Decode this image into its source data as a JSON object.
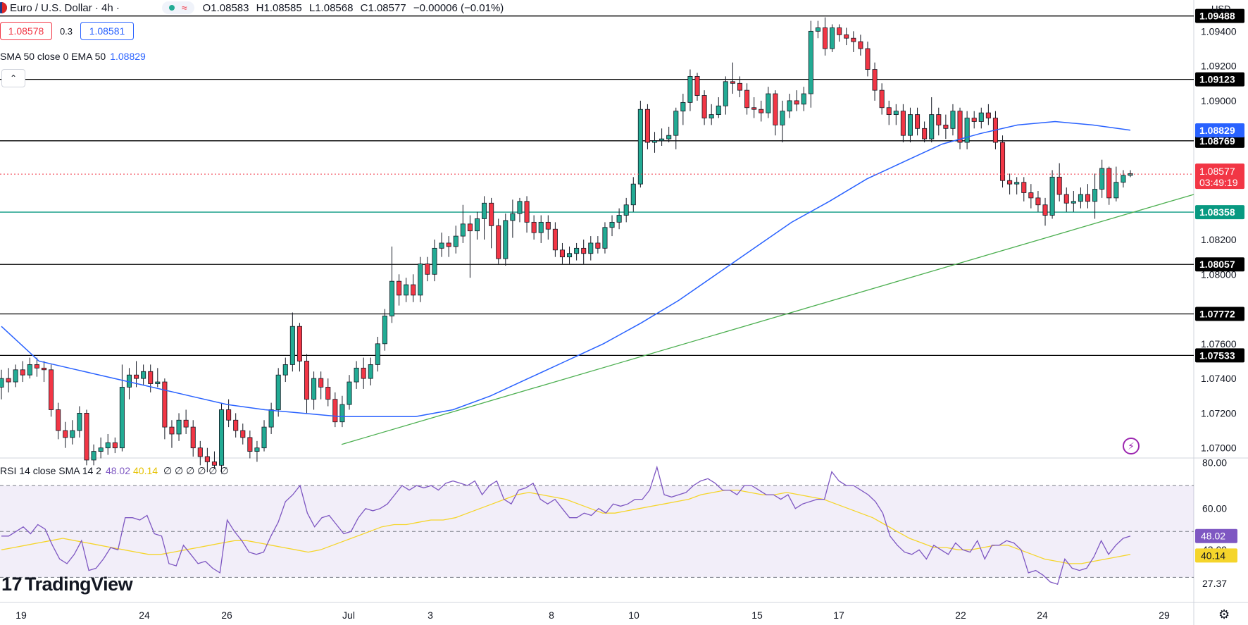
{
  "header": {
    "symbol": "Euro / U.S. Dollar · 4h ·",
    "wave_glyph": "≈",
    "ohlc": {
      "open": "O1.08583",
      "high": "H1.08585",
      "low": "L1.08568",
      "close": "C1.08577",
      "change": "−0.00006 (−0.01%)"
    },
    "bid": "1.08578",
    "spread": "0.3",
    "ask": "1.08581",
    "indicator_label": "SMA 50 close 0 EMA 50",
    "indicator_value": "1.08829",
    "currency": "USD",
    "collapse_glyph": "⌃"
  },
  "rsi_panel": {
    "label": "RSI 14 close SMA 14 2",
    "rsi_value": "48.02",
    "sma_value": "40.14",
    "zeros": "∅ ∅ ∅ ∅ ∅ ∅"
  },
  "branding": {
    "logo_text": "TradingView",
    "logo_mark": "17"
  },
  "colors": {
    "up": "#22ab94",
    "down": "#f23645",
    "ema": "#2962ff",
    "trend": "#4caf50",
    "support": "#089981",
    "rsi": "#7e57c2",
    "rsi_sma": "#f5d52b"
  },
  "chart_data": {
    "type": "candlestick",
    "title": "Euro / U.S. Dollar · 4h",
    "y_range": [
      1.0695,
      1.0958
    ],
    "price_ticks": [
      "1.09400",
      "1.09200",
      "1.09000",
      "1.08200",
      "1.08000",
      "1.07600",
      "1.07400",
      "1.07200",
      "1.07000"
    ],
    "x_labels": [
      "19",
      "24",
      "26",
      "Jul",
      "3",
      "8",
      "10",
      "15",
      "17",
      "22",
      "24",
      "29"
    ],
    "horizontal_levels": [
      {
        "value": 1.09488,
        "label": "1.09488",
        "color": "#000000"
      },
      {
        "value": 1.09123,
        "label": "1.09123",
        "color": "#000000"
      },
      {
        "value": 1.08769,
        "label": "1.08769",
        "color": "#000000"
      },
      {
        "value": 1.08358,
        "label": "1.08358",
        "color": "#089981"
      },
      {
        "value": 1.08057,
        "label": "1.08057",
        "color": "#000000"
      },
      {
        "value": 1.07772,
        "label": "1.07772",
        "color": "#000000"
      },
      {
        "value": 1.07533,
        "label": "1.07533",
        "color": "#000000"
      }
    ],
    "ema_label": "1.08829",
    "ema_value": 1.08829,
    "last_price": {
      "value": 1.08577,
      "label": "1.08577",
      "countdown": "03:49:19"
    },
    "ema50": [
      1.077,
      1.075,
      1.0745,
      1.074,
      1.0735,
      1.073,
      1.0725,
      1.0722,
      1.072,
      1.0718,
      1.0718,
      1.0718,
      1.0722,
      1.073,
      1.074,
      1.075,
      1.076,
      1.0772,
      1.0785,
      1.08,
      1.0815,
      1.083,
      1.0842,
      1.0855,
      1.0865,
      1.0875,
      1.0881,
      1.0886,
      1.0888,
      1.0886,
      1.0883
    ],
    "trendline": [
      [
        1.0702,
        1.0846
      ]
    ],
    "candles": [
      [
        1.0735,
        1.074,
        1.0745,
        1.0728
      ],
      [
        1.074,
        1.0738,
        1.0746,
        1.0732
      ],
      [
        1.0738,
        1.0745,
        1.0748,
        1.0735
      ],
      [
        1.0745,
        1.0742,
        1.075,
        1.0738
      ],
      [
        1.0742,
        1.0748,
        1.0752,
        1.074
      ],
      [
        1.0748,
        1.0746,
        1.0752,
        1.0741
      ],
      [
        1.0746,
        1.0745,
        1.075,
        1.0738
      ],
      [
        1.0745,
        1.0722,
        1.0748,
        1.0718
      ],
      [
        1.0722,
        1.071,
        1.0726,
        1.0705
      ],
      [
        1.071,
        1.0706,
        1.0715,
        1.07
      ],
      [
        1.0706,
        1.071,
        1.0716,
        1.0702
      ],
      [
        1.071,
        1.072,
        1.0724,
        1.0706
      ],
      [
        1.072,
        1.0693,
        1.0722,
        1.069
      ],
      [
        1.0693,
        1.0698,
        1.0702,
        1.069
      ],
      [
        1.0698,
        1.07,
        1.0706,
        1.0694
      ],
      [
        1.07,
        1.0703,
        1.0708,
        1.0696
      ],
      [
        1.0703,
        1.07,
        1.0706,
        1.0697
      ],
      [
        1.07,
        1.0735,
        1.0748,
        1.0698
      ],
      [
        1.0735,
        1.0742,
        1.0746,
        1.0728
      ],
      [
        1.0742,
        1.074,
        1.075,
        1.0735
      ],
      [
        1.074,
        1.0744,
        1.0748,
        1.0736
      ],
      [
        1.0744,
        1.0737,
        1.0748,
        1.0732
      ],
      [
        1.0737,
        1.0738,
        1.0746,
        1.0735
      ],
      [
        1.0738,
        1.0712,
        1.074,
        1.0705
      ],
      [
        1.0712,
        1.0708,
        1.0716,
        1.07
      ],
      [
        1.0708,
        1.0716,
        1.072,
        1.0704
      ],
      [
        1.0716,
        1.0712,
        1.0722,
        1.0708
      ],
      [
        1.0712,
        1.07,
        1.0716,
        1.0695
      ],
      [
        1.07,
        1.0695,
        1.0704,
        1.069
      ],
      [
        1.0695,
        1.0692,
        1.07,
        1.0686
      ],
      [
        1.0692,
        1.069,
        1.0698,
        1.0688
      ],
      [
        1.069,
        1.0722,
        1.0726,
        1.0686
      ],
      [
        1.0722,
        1.0716,
        1.0728,
        1.0712
      ],
      [
        1.0716,
        1.071,
        1.072,
        1.0706
      ],
      [
        1.071,
        1.0706,
        1.0714,
        1.0702
      ],
      [
        1.0706,
        1.0698,
        1.071,
        1.0694
      ],
      [
        1.0698,
        1.07,
        1.0704,
        1.0692
      ],
      [
        1.07,
        1.0712,
        1.0716,
        1.0698
      ],
      [
        1.0712,
        1.0722,
        1.0726,
        1.0708
      ],
      [
        1.0722,
        1.0742,
        1.0746,
        1.0718
      ],
      [
        1.0742,
        1.0748,
        1.0752,
        1.0738
      ],
      [
        1.0748,
        1.077,
        1.0778,
        1.0744
      ],
      [
        1.077,
        1.075,
        1.0772,
        1.0744
      ],
      [
        1.075,
        1.0728,
        1.0754,
        1.072
      ],
      [
        1.0728,
        1.074,
        1.0744,
        1.0722
      ],
      [
        1.074,
        1.0735,
        1.0744,
        1.0728
      ],
      [
        1.0735,
        1.0728,
        1.074,
        1.0724
      ],
      [
        1.0728,
        1.0715,
        1.0732,
        1.0712
      ],
      [
        1.0715,
        1.0725,
        1.073,
        1.0712
      ],
      [
        1.0725,
        1.0738,
        1.0742,
        1.0722
      ],
      [
        1.0738,
        1.0746,
        1.075,
        1.0734
      ],
      [
        1.0746,
        1.074,
        1.0752,
        1.0734
      ],
      [
        1.074,
        1.0748,
        1.0752,
        1.0736
      ],
      [
        1.0748,
        1.076,
        1.0764,
        1.0744
      ],
      [
        1.076,
        1.0776,
        1.078,
        1.0756
      ],
      [
        1.0776,
        1.0796,
        1.0816,
        1.0772
      ],
      [
        1.0796,
        1.0788,
        1.08,
        1.0782
      ],
      [
        1.0788,
        1.0794,
        1.0798,
        1.0784
      ],
      [
        1.0794,
        1.0788,
        1.08,
        1.0784
      ],
      [
        1.0788,
        1.0806,
        1.081,
        1.0784
      ],
      [
        1.0806,
        1.08,
        1.081,
        1.0796
      ],
      [
        1.08,
        1.0815,
        1.082,
        1.0796
      ],
      [
        1.0815,
        1.0818,
        1.0824,
        1.081
      ],
      [
        1.0818,
        1.0816,
        1.0822,
        1.081
      ],
      [
        1.0816,
        1.0822,
        1.0828,
        1.0812
      ],
      [
        1.0822,
        1.0829,
        1.084,
        1.0818
      ],
      [
        1.0829,
        1.0825,
        1.0834,
        1.0798
      ],
      [
        1.0825,
        1.0832,
        1.0836,
        1.082
      ],
      [
        1.0832,
        1.0841,
        1.0845,
        1.082
      ],
      [
        1.0841,
        1.0828,
        1.0844,
        1.0815
      ],
      [
        1.0828,
        1.0809,
        1.0832,
        1.0806
      ],
      [
        1.0809,
        1.0831,
        1.0835,
        1.0805
      ],
      [
        1.0831,
        1.0835,
        1.0843,
        1.0821
      ],
      [
        1.0835,
        1.0842,
        1.0844,
        1.083
      ],
      [
        1.0842,
        1.083,
        1.0845,
        1.0824
      ],
      [
        1.083,
        1.0824,
        1.0834,
        1.082
      ],
      [
        1.0824,
        1.083,
        1.0834,
        1.0818
      ],
      [
        1.083,
        1.0826,
        1.0834,
        1.082
      ],
      [
        1.0826,
        1.0814,
        1.083,
        1.081
      ],
      [
        1.0814,
        1.081,
        1.0818,
        1.0806
      ],
      [
        1.081,
        1.0812,
        1.0816,
        1.0806
      ],
      [
        1.0812,
        1.0815,
        1.0818,
        1.0808
      ],
      [
        1.0815,
        1.0812,
        1.082,
        1.0806
      ],
      [
        1.0812,
        1.0818,
        1.0822,
        1.0808
      ],
      [
        1.0818,
        1.0815,
        1.0822,
        1.0812
      ],
      [
        1.0815,
        1.0827,
        1.083,
        1.0812
      ],
      [
        1.0827,
        1.083,
        1.0834,
        1.0822
      ],
      [
        1.083,
        1.0834,
        1.0838,
        1.0826
      ],
      [
        1.0834,
        1.084,
        1.0844,
        1.083
      ],
      [
        1.084,
        1.0852,
        1.0856,
        1.0836
      ],
      [
        1.0852,
        1.0895,
        1.09,
        1.085
      ],
      [
        1.0895,
        1.0876,
        1.0898,
        1.0872
      ],
      [
        1.0876,
        1.0877,
        1.0882,
        1.087
      ],
      [
        1.0877,
        1.0878,
        1.0884,
        1.0874
      ],
      [
        1.0878,
        1.088,
        1.0885,
        1.0876
      ],
      [
        1.088,
        1.0894,
        1.0896,
        1.0872
      ],
      [
        1.0894,
        1.0899,
        1.0904,
        1.0886
      ],
      [
        1.0899,
        1.0914,
        1.0918,
        1.0894
      ],
      [
        1.0914,
        1.0903,
        1.0916,
        1.09
      ],
      [
        1.0903,
        1.089,
        1.0906,
        1.0886
      ],
      [
        1.089,
        1.0892,
        1.0898,
        1.0886
      ],
      [
        1.0892,
        1.0897,
        1.0902,
        1.089
      ],
      [
        1.0897,
        1.0911,
        1.0914,
        1.0892
      ],
      [
        1.0911,
        1.091,
        1.0922,
        1.0904
      ],
      [
        1.091,
        1.0906,
        1.0914,
        1.0902
      ],
      [
        1.0906,
        1.0896,
        1.091,
        1.0892
      ],
      [
        1.0896,
        1.0895,
        1.0902,
        1.089
      ],
      [
        1.0895,
        1.0893,
        1.09,
        1.0888
      ],
      [
        1.0893,
        1.0904,
        1.0908,
        1.089
      ],
      [
        1.0904,
        1.0886,
        1.0906,
        1.088
      ],
      [
        1.0886,
        1.0894,
        1.09,
        1.0876
      ],
      [
        1.0894,
        1.09,
        1.0904,
        1.089
      ],
      [
        1.09,
        1.0898,
        1.0906,
        1.0894
      ],
      [
        1.0898,
        1.0904,
        1.0908,
        1.0894
      ],
      [
        1.0904,
        1.094,
        1.0946,
        1.0896
      ],
      [
        1.094,
        1.0942,
        1.0946,
        1.0936
      ],
      [
        1.0942,
        1.093,
        1.0948,
        1.0926
      ],
      [
        1.093,
        1.0942,
        1.0944,
        1.0928
      ],
      [
        1.0942,
        1.0938,
        1.0944,
        1.0934
      ],
      [
        1.0938,
        1.0936,
        1.0942,
        1.0932
      ],
      [
        1.0936,
        1.0934,
        1.094,
        1.0928
      ],
      [
        1.0934,
        1.093,
        1.0938,
        1.0926
      ],
      [
        1.093,
        1.0918,
        1.0934,
        1.0914
      ],
      [
        1.0918,
        1.0906,
        1.0922,
        1.09
      ],
      [
        1.0906,
        1.0896,
        1.091,
        1.0892
      ],
      [
        1.0896,
        1.0892,
        1.09,
        1.0886
      ],
      [
        1.0892,
        1.0894,
        1.0898,
        1.0886
      ],
      [
        1.0894,
        1.088,
        1.0898,
        1.0876
      ],
      [
        1.088,
        1.0892,
        1.0896,
        1.0876
      ],
      [
        1.0892,
        1.0884,
        1.0896,
        1.088
      ],
      [
        1.0884,
        1.0878,
        1.0888,
        1.0876
      ],
      [
        1.0878,
        1.0892,
        1.0902,
        1.0876
      ],
      [
        1.0892,
        1.0886,
        1.0896,
        1.088
      ],
      [
        1.0886,
        1.0884,
        1.0892,
        1.0878
      ],
      [
        1.0884,
        1.0894,
        1.0898,
        1.088
      ],
      [
        1.0894,
        1.0876,
        1.0896,
        1.0872
      ],
      [
        1.0876,
        1.089,
        1.0894,
        1.0872
      ],
      [
        1.089,
        1.0888,
        1.0894,
        1.0884
      ],
      [
        1.0888,
        1.0893,
        1.0896,
        1.0884
      ],
      [
        1.0893,
        1.089,
        1.0898,
        1.0886
      ],
      [
        1.089,
        1.0876,
        1.0894,
        1.0872
      ],
      [
        1.0876,
        1.0854,
        1.088,
        1.085
      ],
      [
        1.0854,
        1.0852,
        1.0858,
        1.0846
      ],
      [
        1.0852,
        1.0853,
        1.0856,
        1.0846
      ],
      [
        1.0853,
        1.0847,
        1.0856,
        1.0842
      ],
      [
        1.0847,
        1.0844,
        1.0852,
        1.0838
      ],
      [
        1.0844,
        1.084,
        1.0848,
        1.0836
      ],
      [
        1.084,
        1.0834,
        1.0844,
        1.0828
      ],
      [
        1.0834,
        1.0856,
        1.086,
        1.0832
      ],
      [
        1.0856,
        1.0846,
        1.0864,
        1.0842
      ],
      [
        1.0846,
        1.0841,
        1.085,
        1.0836
      ],
      [
        1.0841,
        1.0842,
        1.0848,
        1.0836
      ],
      [
        1.0842,
        1.0846,
        1.085,
        1.0838
      ],
      [
        1.0846,
        1.0842,
        1.0852,
        1.0838
      ],
      [
        1.0842,
        1.0849,
        1.0858,
        1.0832
      ],
      [
        1.0849,
        1.0861,
        1.0866,
        1.0844
      ],
      [
        1.0861,
        1.0844,
        1.0862,
        1.084
      ],
      [
        1.0844,
        1.0853,
        1.0862,
        1.0842
      ],
      [
        1.0853,
        1.0857,
        1.086,
        1.085
      ],
      [
        1.0857,
        1.0858,
        1.086,
        1.0856
      ]
    ],
    "rsi": {
      "label": "RSI 14 close SMA 14 2",
      "y_range": [
        20,
        82
      ],
      "ticks": [
        "80.00",
        "60.00",
        "42.09",
        "27.37"
      ],
      "bands": {
        "upper": 70,
        "middle": 50,
        "lower": 30
      },
      "rsi_value": "48.02",
      "sma_value": "40.14",
      "rsi_line": [
        48,
        48,
        50,
        52,
        49,
        53,
        51,
        44,
        38,
        36,
        40,
        46,
        33,
        34,
        38,
        43,
        42,
        56,
        56,
        55,
        57,
        49,
        48,
        36,
        35,
        44,
        40,
        36,
        37,
        34,
        32,
        55,
        50,
        46,
        41,
        40,
        41,
        48,
        54,
        63,
        66,
        70,
        58,
        52,
        56,
        57,
        53,
        49,
        50,
        56,
        60,
        59,
        60,
        62,
        66,
        70,
        68,
        70,
        69,
        70,
        68,
        71,
        72,
        71,
        70,
        72,
        66,
        70,
        72,
        64,
        62,
        68,
        69,
        71,
        64,
        62,
        64,
        60,
        56,
        56,
        58,
        57,
        60,
        58,
        62,
        61,
        62,
        64,
        64,
        68,
        78,
        66,
        65,
        66,
        67,
        70,
        72,
        73,
        71,
        68,
        68,
        66,
        70,
        70,
        68,
        66,
        66,
        64,
        66,
        60,
        62,
        63,
        64,
        64,
        76,
        72,
        70,
        70,
        68,
        66,
        63,
        58,
        48,
        44,
        41,
        40,
        42,
        38,
        44,
        42,
        40,
        45,
        42,
        41,
        46,
        38,
        44,
        44,
        46,
        45,
        42,
        32,
        33,
        31,
        28,
        27,
        38,
        34,
        33,
        34,
        39,
        46,
        40,
        44,
        47,
        48
      ],
      "sma_line": [
        42,
        43,
        44,
        45,
        46,
        47,
        46,
        45,
        44,
        43,
        42,
        41,
        40,
        40,
        41,
        42,
        43,
        44,
        45,
        46,
        46,
        45,
        44,
        43,
        42,
        41,
        42,
        44,
        46,
        48,
        50,
        52,
        53,
        53,
        54,
        55,
        55,
        56,
        58,
        60,
        62,
        64,
        66,
        67,
        66,
        65,
        64,
        62,
        60,
        58,
        58,
        59,
        60,
        61,
        62,
        63,
        64,
        66,
        67,
        68,
        68,
        67,
        66,
        66,
        67,
        66,
        65,
        64,
        62,
        60,
        58,
        56,
        53,
        50,
        47,
        45,
        43,
        43,
        42,
        42,
        43,
        44,
        44,
        42,
        40,
        38,
        37,
        36,
        36,
        37,
        38,
        39,
        40
      ]
    }
  }
}
